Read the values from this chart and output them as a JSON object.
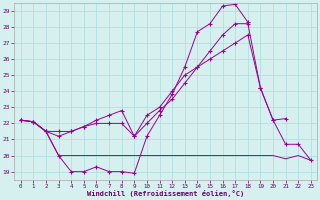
{
  "xlabel": "Windchill (Refroidissement éolien,°C)",
  "background_color": "#d5f0ef",
  "grid_color": "#aadddd",
  "line_color": "#990099",
  "xlim": [
    -0.5,
    23.5
  ],
  "ylim": [
    18.5,
    29.5
  ],
  "yticks": [
    19,
    20,
    21,
    22,
    23,
    24,
    25,
    26,
    27,
    28,
    29
  ],
  "xticks": [
    0,
    1,
    2,
    3,
    4,
    5,
    6,
    7,
    8,
    9,
    10,
    11,
    12,
    13,
    14,
    15,
    16,
    17,
    18,
    19,
    20,
    21,
    22,
    23
  ],
  "series_a_x": [
    0,
    1,
    2,
    3,
    4,
    5,
    6,
    7,
    8,
    9,
    10,
    11,
    12,
    13,
    14,
    15,
    16,
    17,
    18,
    19,
    20,
    21,
    22,
    23
  ],
  "series_a_y": [
    22.2,
    22.1,
    21.5,
    20.0,
    19.0,
    19.0,
    19.3,
    19.0,
    19.0,
    18.9,
    21.2,
    22.5,
    23.8,
    25.5,
    27.7,
    28.2,
    29.3,
    29.4,
    28.3,
    null,
    null,
    null,
    null,
    null
  ],
  "series_b_x": [
    0,
    1,
    2,
    3,
    4,
    5,
    6,
    7,
    8,
    9,
    10,
    11,
    12,
    13,
    14,
    15,
    16,
    17,
    18,
    19,
    20,
    21,
    22,
    23
  ],
  "series_b_y": [
    22.2,
    22.1,
    21.5,
    21.2,
    21.5,
    21.8,
    22.0,
    22.0,
    22.0,
    21.2,
    22.0,
    22.8,
    23.5,
    24.5,
    25.5,
    26.5,
    27.5,
    28.2,
    28.2,
    24.2,
    22.2,
    22.3,
    null,
    null
  ],
  "series_c_x": [
    0,
    1,
    2,
    3,
    4,
    5,
    6,
    7,
    8,
    9,
    10,
    11,
    12,
    13,
    14,
    15,
    16,
    17,
    18,
    19,
    20,
    21,
    22,
    23
  ],
  "series_c_y": [
    22.2,
    22.1,
    21.5,
    20.0,
    20.0,
    20.0,
    20.0,
    20.0,
    20.0,
    20.0,
    20.0,
    20.0,
    20.0,
    20.0,
    20.0,
    20.0,
    20.0,
    20.0,
    20.0,
    20.0,
    20.0,
    19.8,
    20.0,
    19.7
  ],
  "series_d_x": [
    0,
    1,
    2,
    3,
    4,
    5,
    6,
    7,
    8,
    9,
    10,
    11,
    12,
    13,
    14,
    15,
    16,
    17,
    18,
    19,
    20,
    21,
    22,
    23
  ],
  "series_d_y": [
    22.2,
    22.1,
    21.5,
    21.5,
    21.5,
    21.8,
    22.2,
    22.5,
    22.8,
    21.2,
    22.5,
    23.0,
    24.0,
    25.0,
    25.5,
    26.0,
    26.5,
    27.0,
    27.5,
    24.2,
    22.2,
    20.7,
    20.7,
    19.7
  ]
}
